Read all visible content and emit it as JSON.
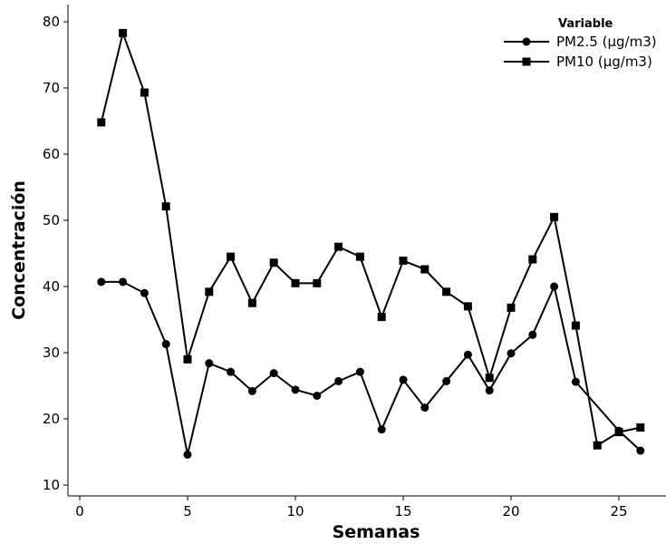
{
  "chart_data": {
    "type": "line",
    "xlabel": "Semanas",
    "ylabel": "Concentración",
    "xlim": [
      0,
      27
    ],
    "ylim": [
      9,
      82
    ],
    "xticks": [
      0,
      5,
      10,
      15,
      20,
      25
    ],
    "yticks": [
      10,
      20,
      30,
      40,
      50,
      60,
      70,
      80
    ],
    "grid": false,
    "legend": {
      "title": "Variable",
      "position": "top-right"
    },
    "x": [
      1,
      2,
      3,
      4,
      5,
      6,
      7,
      8,
      9,
      10,
      11,
      12,
      13,
      14,
      15,
      16,
      17,
      18,
      19,
      20,
      21,
      22,
      23,
      24,
      25,
      26
    ],
    "series": [
      {
        "name": "PM2.5 (µg/m3)",
        "marker": "circle",
        "color": "#000000",
        "x": [
          1,
          2,
          3,
          4,
          5,
          6,
          7,
          8,
          9,
          10,
          11,
          12,
          13,
          14,
          15,
          16,
          17,
          18,
          19,
          20,
          21,
          22,
          23,
          25,
          26
        ],
        "values": [
          40.7,
          40.7,
          39.0,
          31.3,
          14.6,
          28.4,
          27.1,
          24.2,
          26.9,
          24.4,
          23.5,
          25.7,
          27.1,
          18.4,
          25.9,
          21.7,
          25.7,
          29.7,
          24.3,
          29.9,
          32.7,
          40.0,
          25.6,
          18.2,
          15.2
        ]
      },
      {
        "name": "PM10 (µg/m3)",
        "marker": "square",
        "color": "#000000",
        "x": [
          1,
          2,
          3,
          4,
          5,
          6,
          7,
          8,
          9,
          10,
          11,
          12,
          13,
          14,
          15,
          16,
          17,
          18,
          19,
          20,
          21,
          22,
          23,
          24,
          25,
          26
        ],
        "values": [
          64.8,
          78.3,
          69.3,
          52.1,
          29.0,
          39.2,
          44.5,
          37.5,
          43.6,
          40.5,
          40.5,
          46.0,
          44.5,
          35.4,
          43.9,
          42.6,
          39.2,
          37.0,
          26.2,
          36.8,
          44.1,
          50.5,
          34.1,
          16.0,
          18.0,
          18.7
        ]
      }
    ]
  }
}
